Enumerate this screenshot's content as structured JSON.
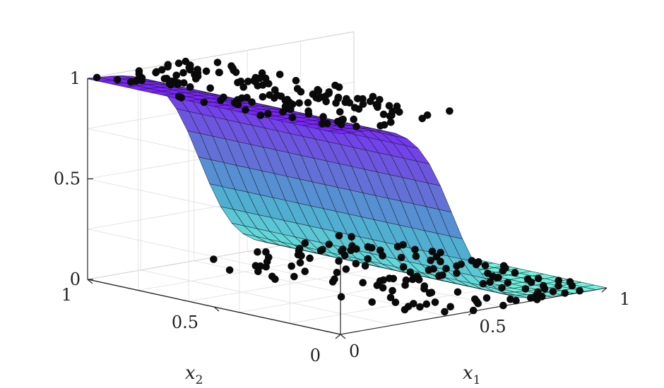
{
  "chart_data": {
    "type": "surface3d_scatter",
    "title": "",
    "axes": {
      "x1": {
        "label": "x",
        "subscript": "1",
        "range": [
          0,
          1
        ],
        "ticks": [
          0,
          0.5,
          1
        ],
        "tick_labels": [
          "0",
          "0.5",
          "1"
        ]
      },
      "x2": {
        "label": "x",
        "subscript": "2",
        "range": [
          0,
          1
        ],
        "ticks": [
          0,
          0.5,
          1
        ],
        "tick_labels": [
          "0",
          "0.5",
          "1"
        ]
      },
      "z": {
        "label": "",
        "range": [
          0,
          1
        ],
        "ticks": [
          0,
          0.5,
          1
        ],
        "tick_labels": [
          "0",
          "0.5",
          "1"
        ]
      }
    },
    "grid": true,
    "surface": {
      "kind": "logistic sigmoid along x1",
      "colormap": [
        "#7a22ff",
        "#6a5ed8",
        "#4da8cf",
        "#6ff2dc"
      ],
      "mesh_color": "#1c1c2c",
      "high_value": 1,
      "low_value": 0,
      "midpoint_x1": 0.42,
      "steepness": 14,
      "resolution": [
        24,
        20
      ]
    },
    "scatter": {
      "marker_color": "#0a0a0a",
      "high_cluster": {
        "z": 1,
        "count": 150,
        "x1_range": [
          0.0,
          0.45
        ],
        "x2_range": [
          0.0,
          1.0
        ]
      },
      "low_cluster": {
        "z": 0,
        "count": 140,
        "x1_range": [
          0.35,
          1.0
        ],
        "x2_range": [
          0.0,
          1.0
        ]
      }
    }
  }
}
